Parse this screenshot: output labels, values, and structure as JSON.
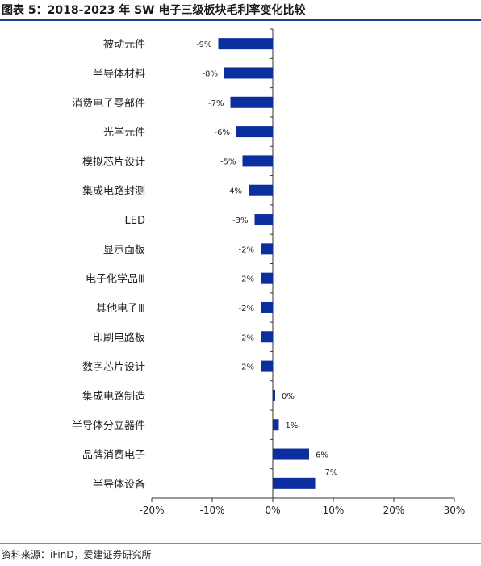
{
  "title": "图表 5：2018-2023 年 SW 电子三级板块毛利率变化比较",
  "source": "资料来源：iFinD，爱建证券研究所",
  "colors": {
    "bar": "#0b2f9f",
    "axis": "#333333"
  },
  "chart_data": {
    "type": "bar",
    "orientation": "horizontal",
    "categories": [
      "被动元件",
      "半导体材料",
      "消费电子零部件",
      "光学元件",
      "模拟芯片设计",
      "集成电路封测",
      "LED",
      "显示面板",
      "电子化学品Ⅲ",
      "其他电子Ⅲ",
      "印刷电路板",
      "数字芯片设计",
      "集成电路制造",
      "半导体分立器件",
      "品牌消费电子",
      "半导体设备"
    ],
    "values": [
      -9,
      -8,
      -7,
      -6,
      -5,
      -4,
      -3,
      -2,
      -2,
      -2,
      -2,
      -2,
      0,
      1,
      6,
      7
    ],
    "labels": [
      "-9%",
      "-8%",
      "-7%",
      "-6%",
      "-5%",
      "-4%",
      "-3%",
      "-2%",
      "-2%",
      "-2%",
      "-2%",
      "-2%",
      "0%",
      "1%",
      "6%",
      "7%"
    ],
    "xlim": [
      -20,
      30
    ],
    "xticks": [
      -20,
      -10,
      0,
      10,
      20,
      30
    ],
    "xtick_labels": [
      "-20%",
      "-10%",
      "0%",
      "10%",
      "20%",
      "30%"
    ],
    "grid": false,
    "legend": "none"
  }
}
